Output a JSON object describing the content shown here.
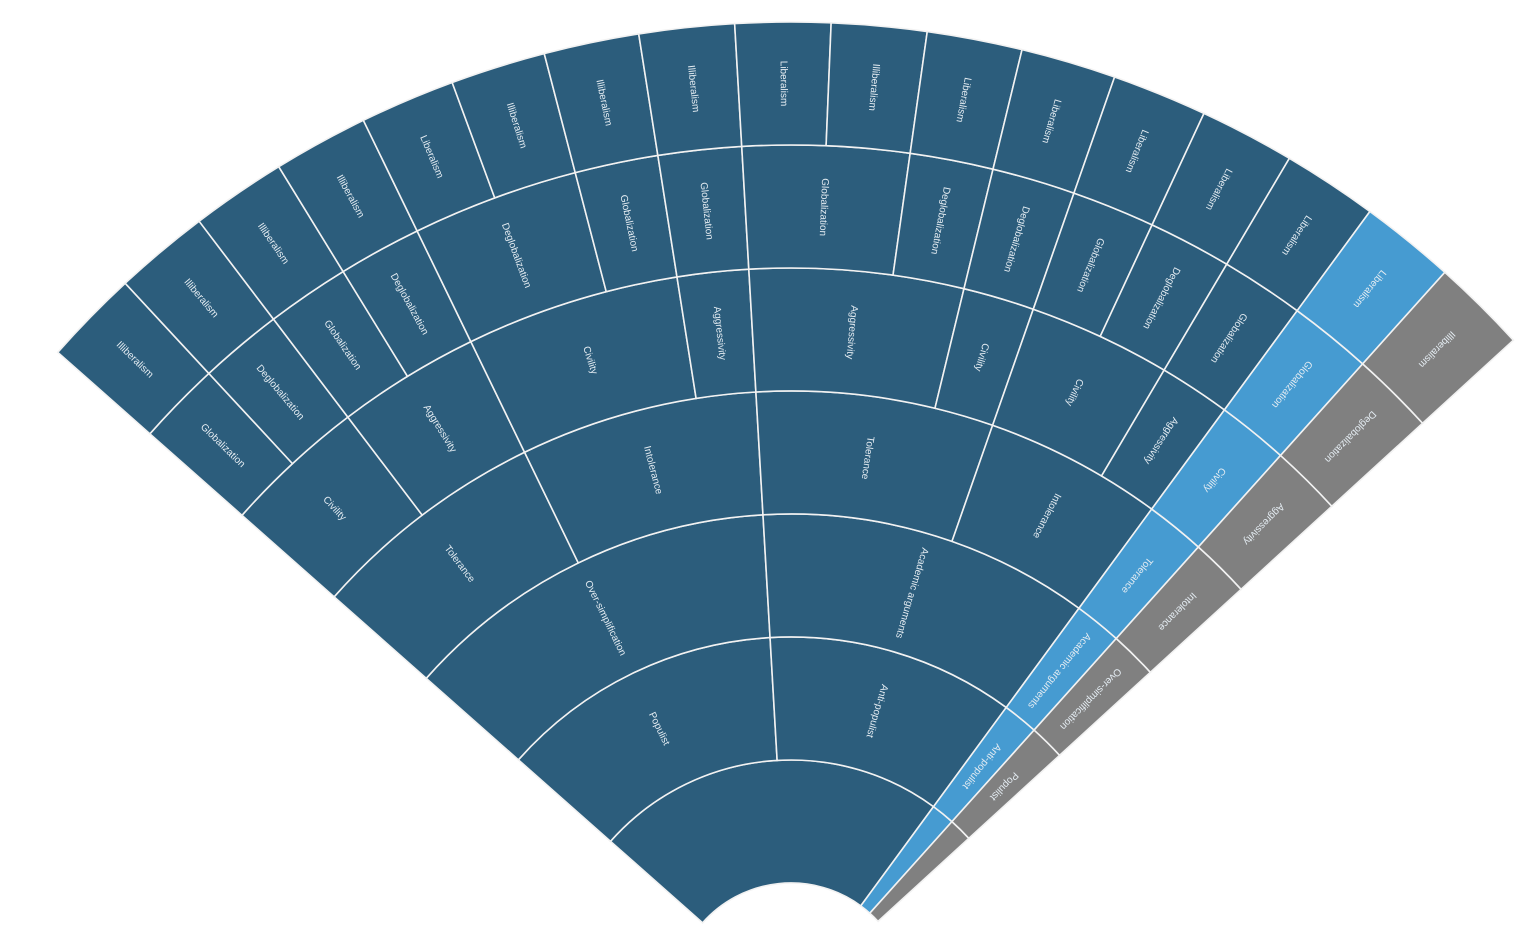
{
  "chart_data": {
    "type": "sunburst",
    "colors": {
      "dark": "#2c5d7c",
      "blue": "#469bd1",
      "grey": "#808080",
      "separator": "#f2f2f2",
      "label": "#e4ecf2"
    },
    "roots": [
      {
        "name": "",
        "color": "dark",
        "children": [
          {
            "name": "Populist",
            "children": [
              {
                "name": "Over-simplification",
                "children": [
                  {
                    "name": "Tolerance",
                    "children": [
                      {
                        "name": "Civility",
                        "children": [
                          {
                            "name": "Globalization",
                            "children": [
                              {
                                "name": "Illiberalism",
                                "value": 1
                              }
                            ]
                          },
                          {
                            "name": "Deglobalization",
                            "children": [
                              {
                                "name": "Illiberalism",
                                "value": 1
                              }
                            ]
                          }
                        ]
                      },
                      {
                        "name": "Aggressivity",
                        "children": [
                          {
                            "name": "Globalization",
                            "children": [
                              {
                                "name": "Illiberalism",
                                "value": 1
                              }
                            ]
                          },
                          {
                            "name": "Deglobalization",
                            "children": [
                              {
                                "name": "Illiberalism",
                                "value": 1
                              }
                            ]
                          }
                        ]
                      }
                    ]
                  },
                  {
                    "name": "Intolerance",
                    "children": [
                      {
                        "name": "Civility",
                        "children": [
                          {
                            "name": "Deglobalization",
                            "children": [
                              {
                                "name": "Liberalism",
                                "value": 1
                              },
                              {
                                "name": "Illiberalism",
                                "value": 1
                              }
                            ]
                          },
                          {
                            "name": "Globalization",
                            "children": [
                              {
                                "name": "Illiberalism",
                                "value": 1
                              }
                            ]
                          }
                        ]
                      },
                      {
                        "name": "Aggressivity",
                        "children": [
                          {
                            "name": "Globalization",
                            "children": [
                              {
                                "name": "Illiberalism",
                                "value": 1
                              }
                            ]
                          }
                        ]
                      }
                    ]
                  }
                ]
              }
            ]
          },
          {
            "name": "Anti-populist",
            "children": [
              {
                "name": "Academic arguments",
                "children": [
                  {
                    "name": "Tolerance",
                    "children": [
                      {
                        "name": "Aggressivity",
                        "children": [
                          {
                            "name": "Globalization",
                            "children": [
                              {
                                "name": "Liberalism",
                                "value": 1
                              },
                              {
                                "name": "Illiberalism",
                                "value": 1
                              }
                            ]
                          },
                          {
                            "name": "Deglobalization",
                            "children": [
                              {
                                "name": "Liberalism",
                                "value": 1
                              }
                            ]
                          }
                        ]
                      },
                      {
                        "name": "Civility",
                        "children": [
                          {
                            "name": "Deglobalization",
                            "children": [
                              {
                                "name": "Liberalism",
                                "value": 1
                              }
                            ]
                          }
                        ]
                      }
                    ]
                  },
                  {
                    "name": "Intolerance",
                    "children": [
                      {
                        "name": "Civility",
                        "children": [
                          {
                            "name": "Globalization",
                            "children": [
                              {
                                "name": "Liberalism",
                                "value": 1
                              }
                            ]
                          },
                          {
                            "name": "Deglobalization",
                            "children": [
                              {
                                "name": "Liberalism",
                                "value": 1
                              }
                            ]
                          }
                        ]
                      },
                      {
                        "name": "Aggressivity",
                        "children": [
                          {
                            "name": "Globalization",
                            "children": [
                              {
                                "name": "Liberalism",
                                "value": 1
                              }
                            ]
                          }
                        ]
                      }
                    ]
                  }
                ]
              }
            ]
          }
        ]
      },
      {
        "name": "",
        "color": "blue",
        "children": [
          {
            "name": "Anti-populist",
            "children": [
              {
                "name": "Academic arguments",
                "children": [
                  {
                    "name": "Tolerance",
                    "children": [
                      {
                        "name": "Civility",
                        "children": [
                          {
                            "name": "Globalization",
                            "children": [
                              {
                                "name": "Liberalism",
                                "value": 1
                              }
                            ]
                          }
                        ]
                      }
                    ]
                  }
                ]
              }
            ]
          }
        ]
      },
      {
        "name": "",
        "color": "grey",
        "children": [
          {
            "name": "Populist",
            "children": [
              {
                "name": "Over-simplification",
                "children": [
                  {
                    "name": "Intolerance",
                    "children": [
                      {
                        "name": "Aggressivity",
                        "children": [
                          {
                            "name": "Deglobalization",
                            "children": [
                              {
                                "name": "Illiberalism",
                                "value": 1
                              }
                            ]
                          }
                        ]
                      }
                    ]
                  }
                ]
              }
            ]
          }
        ]
      }
    ]
  }
}
